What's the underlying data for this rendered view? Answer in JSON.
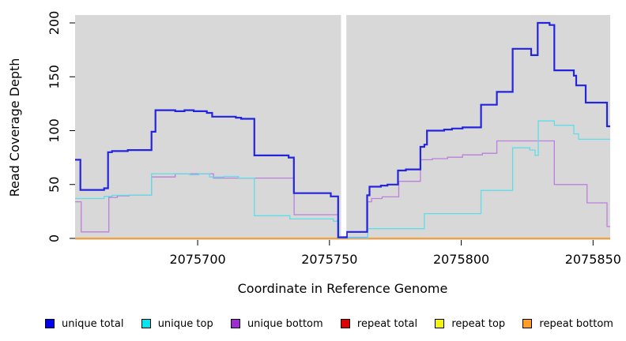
{
  "figure": {
    "xlabel": "Coordinate in Reference Genome",
    "ylabel": "Read Coverage Depth"
  },
  "chart_data": {
    "type": "line",
    "step": true,
    "title": "",
    "xlabel": "Coordinate in Reference Genome",
    "ylabel": "Read Coverage Depth",
    "xlim": [
      2075653.5,
      2075856.5
    ],
    "ylim": [
      0,
      200
    ],
    "x_ticks": [
      2075700,
      2075750,
      2075800,
      2075850
    ],
    "y_ticks": [
      0,
      50,
      100,
      150,
      200
    ],
    "grid": false,
    "plot_background": "#d8d8d8",
    "gap_region": {
      "x_start": 2075754.4,
      "x_end": 2075756.4,
      "color": "#ffffff"
    },
    "legend_position": "bottom",
    "series": [
      {
        "name": "unique total",
        "color": "#0000ee",
        "line_color": "#2424dc",
        "width": 2.2,
        "points": [
          [
            2075653.5,
            73
          ],
          [
            2075655.5,
            45
          ],
          [
            2075664.5,
            46.5
          ],
          [
            2075666,
            80
          ],
          [
            2075667.5,
            81
          ],
          [
            2075673.5,
            82
          ],
          [
            2075682.5,
            99
          ],
          [
            2075684,
            119
          ],
          [
            2075691.5,
            118
          ],
          [
            2075695,
            119
          ],
          [
            2075698.5,
            118
          ],
          [
            2075703.5,
            116.5
          ],
          [
            2075705.5,
            113
          ],
          [
            2075714.5,
            112
          ],
          [
            2075716.5,
            111
          ],
          [
            2075721.5,
            77
          ],
          [
            2075734.5,
            75
          ],
          [
            2075736.5,
            42
          ],
          [
            2075750.5,
            39
          ],
          [
            2075753.3,
            1
          ],
          [
            2075756.6,
            6
          ],
          [
            2075764.3,
            40
          ],
          [
            2075765.2,
            48
          ],
          [
            2075769.5,
            49
          ],
          [
            2075772,
            50
          ],
          [
            2075776,
            63
          ],
          [
            2075779,
            64
          ],
          [
            2075784.5,
            85
          ],
          [
            2075786,
            87
          ],
          [
            2075787,
            100
          ],
          [
            2075793.5,
            101
          ],
          [
            2075796.5,
            102
          ],
          [
            2075800.5,
            103
          ],
          [
            2075807.5,
            124
          ],
          [
            2075813.5,
            136
          ],
          [
            2075819.5,
            176
          ],
          [
            2075826.5,
            170
          ],
          [
            2075829,
            200
          ],
          [
            2075833.5,
            198
          ],
          [
            2075835.3,
            156
          ],
          [
            2075842.7,
            151
          ],
          [
            2075843.6,
            142
          ],
          [
            2075847.2,
            126
          ],
          [
            2075855.3,
            104
          ]
        ]
      },
      {
        "name": "unique top",
        "color": "#00e5ee",
        "line_color": "#5edde8",
        "width": 1.3,
        "points": [
          [
            2075653.5,
            37
          ],
          [
            2075664.5,
            39
          ],
          [
            2075667.5,
            40
          ],
          [
            2075682.5,
            60
          ],
          [
            2075697,
            59
          ],
          [
            2075700.5,
            60
          ],
          [
            2075704.5,
            57
          ],
          [
            2075710,
            57.5
          ],
          [
            2075715.5,
            56
          ],
          [
            2075721.5,
            21
          ],
          [
            2075735,
            18
          ],
          [
            2075751.5,
            16
          ],
          [
            2075753.5,
            0.5
          ],
          [
            2075764.5,
            9
          ],
          [
            2075786,
            23
          ],
          [
            2075807.5,
            44.5
          ],
          [
            2075819.5,
            84
          ],
          [
            2075826,
            82
          ],
          [
            2075828,
            77
          ],
          [
            2075829.2,
            109
          ],
          [
            2075835.3,
            105
          ],
          [
            2075842.7,
            97
          ],
          [
            2075844.5,
            92
          ]
        ]
      },
      {
        "name": "unique bottom",
        "color": "#9d2bd6",
        "line_color": "#bc7fdd",
        "width": 1.3,
        "points": [
          [
            2075653.5,
            34
          ],
          [
            2075655.8,
            6
          ],
          [
            2075666.3,
            38
          ],
          [
            2075669.5,
            39.5
          ],
          [
            2075674,
            40
          ],
          [
            2075682.5,
            57
          ],
          [
            2075691.5,
            60
          ],
          [
            2075706,
            56
          ],
          [
            2075736.6,
            22
          ],
          [
            2075753.3,
            1
          ],
          [
            2075764.5,
            34
          ],
          [
            2075766,
            37
          ],
          [
            2075770,
            38.5
          ],
          [
            2075776.3,
            53
          ],
          [
            2075784.5,
            73
          ],
          [
            2075789,
            74
          ],
          [
            2075794.8,
            75.3
          ],
          [
            2075800.5,
            77.5
          ],
          [
            2075808,
            79
          ],
          [
            2075813.5,
            90.5
          ],
          [
            2075835.3,
            50
          ],
          [
            2075847.7,
            33
          ],
          [
            2075855.3,
            11
          ]
        ]
      },
      {
        "name": "repeat total",
        "color": "#dd0000",
        "line_color": "#dd0000",
        "width": 1.2,
        "points": [
          [
            2075653.5,
            0
          ]
        ]
      },
      {
        "name": "repeat top",
        "color": "#f2f20c",
        "line_color": "#f2f20c",
        "width": 1.2,
        "points": [
          [
            2075653.5,
            0
          ]
        ]
      },
      {
        "name": "repeat bottom",
        "color": "#ff9d26",
        "line_color": "#ff9d26",
        "width": 1.8,
        "points": [
          [
            2075653.5,
            0
          ]
        ]
      }
    ]
  }
}
